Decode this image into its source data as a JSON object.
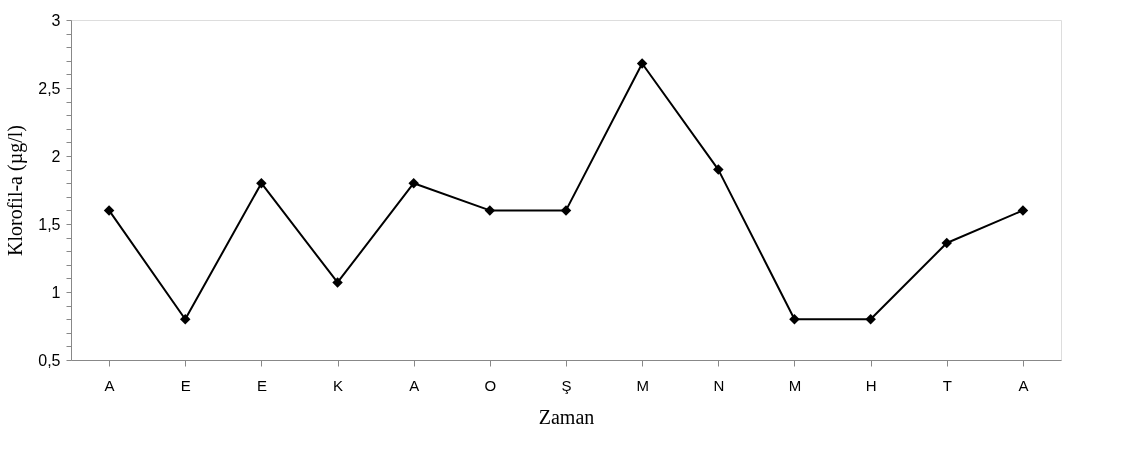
{
  "chart_data": {
    "type": "line",
    "xlabel": "Zaman",
    "ylabel": "Klorofil-a (µg/l)",
    "categories": [
      "A",
      "E",
      "E",
      "K",
      "A",
      "O",
      "Ş",
      "M",
      "N",
      "M",
      "H",
      "T",
      "A"
    ],
    "series": [
      {
        "color": "#000000",
        "values": [
          1.6,
          0.8,
          1.8,
          1.07,
          1.8,
          1.6,
          1.6,
          2.68,
          1.9,
          0.8,
          0.8,
          1.36,
          1.6
        ]
      }
    ],
    "ylim": [
      0.5,
      3
    ],
    "yticks": [
      {
        "value": 0.5,
        "label": "0,5"
      },
      {
        "value": 0.6,
        "label": null
      },
      {
        "value": 0.7,
        "label": null
      },
      {
        "value": 0.8,
        "label": null
      },
      {
        "value": 0.9,
        "label": null
      },
      1,
      {
        "value": 1.1,
        "label": null
      },
      {
        "value": 1.2,
        "label": null
      },
      {
        "value": 1.3,
        "label": null
      },
      {
        "value": 1.4,
        "label": null
      },
      {
        "value": 1.5,
        "label": "1,5"
      },
      {
        "value": 1.6,
        "label": null
      },
      {
        "value": 1.7,
        "label": null
      },
      {
        "value": 1.8,
        "label": null
      },
      {
        "value": 1.9,
        "label": null
      },
      2,
      {
        "value": 2.1,
        "label": null
      },
      {
        "value": 2.2,
        "label": null
      },
      {
        "value": 2.3,
        "label": null
      },
      {
        "value": 2.4,
        "label": null
      },
      {
        "value": 2.5,
        "label": "2,5"
      },
      {
        "value": 2.6,
        "label": null
      },
      {
        "value": 2.7,
        "label": null
      },
      {
        "value": 2.8,
        "label": null
      },
      {
        "value": 2.9,
        "label": null
      },
      3
    ],
    "marker": "diamond",
    "line_style": "solid",
    "grid": false
  }
}
